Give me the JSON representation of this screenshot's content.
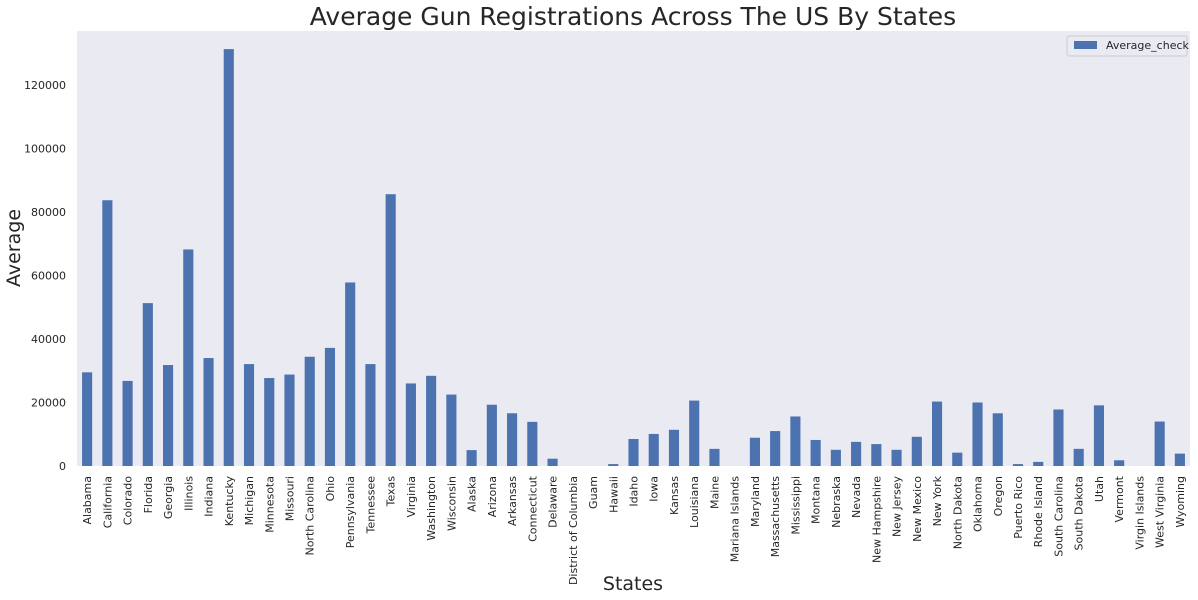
{
  "chart_data": {
    "type": "bar",
    "title": "Average Gun Registrations Across The US By States",
    "xlabel": "States",
    "ylabel": "Average",
    "ylim": [
      0,
      137000
    ],
    "yticks": [
      0,
      20000,
      40000,
      60000,
      80000,
      100000,
      120000
    ],
    "grid": false,
    "legend_position": "top-right",
    "series": [
      {
        "name": "Average_check",
        "color": "#4c72b0",
        "values": [
          29500,
          83700,
          26800,
          51300,
          31800,
          68200,
          34000,
          131300,
          32100,
          27700,
          28800,
          34400,
          37200,
          57800,
          32100,
          85600,
          26000,
          28400,
          22500,
          5000,
          19300,
          16600,
          13900,
          2300,
          0,
          0,
          600,
          8500,
          10100,
          11400,
          20600,
          5400,
          0,
          8900,
          11000,
          15600,
          8200,
          5100,
          7600,
          6900,
          5100,
          9200,
          20300,
          4200,
          20000,
          16600,
          600,
          1300,
          17800,
          5400,
          19100,
          1800,
          0,
          14000,
          3900
        ]
      }
    ],
    "categories": [
      "Alabama",
      "California",
      "Colorado",
      "Florida",
      "Georgia",
      "Illinois",
      "Indiana",
      "Kentucky",
      "Michigan",
      "Minnesota",
      "Missouri",
      "North Carolina",
      "Ohio",
      "Pennsylvania",
      "Tennessee",
      "Texas",
      "Virginia",
      "Washington",
      "Wisconsin",
      "Alaska",
      "Arizona",
      "Arkansas",
      "Connecticut",
      "Delaware",
      "District of Columbia",
      "Guam",
      "Hawaii",
      "Idaho",
      "Iowa",
      "Kansas",
      "Louisiana",
      "Maine",
      "Mariana Islands",
      "Maryland",
      "Massachusetts",
      "Mississippi",
      "Montana",
      "Nebraska",
      "Nevada",
      "New Hampshire",
      "New Jersey",
      "New Mexico",
      "New York",
      "North Dakota",
      "Oklahoma",
      "Oregon",
      "Puerto Rico",
      "Rhode Island",
      "South Carolina",
      "South Dakota",
      "Utah",
      "Vermont",
      "Virgin Islands",
      "West Virginia",
      "Wyoming"
    ]
  }
}
